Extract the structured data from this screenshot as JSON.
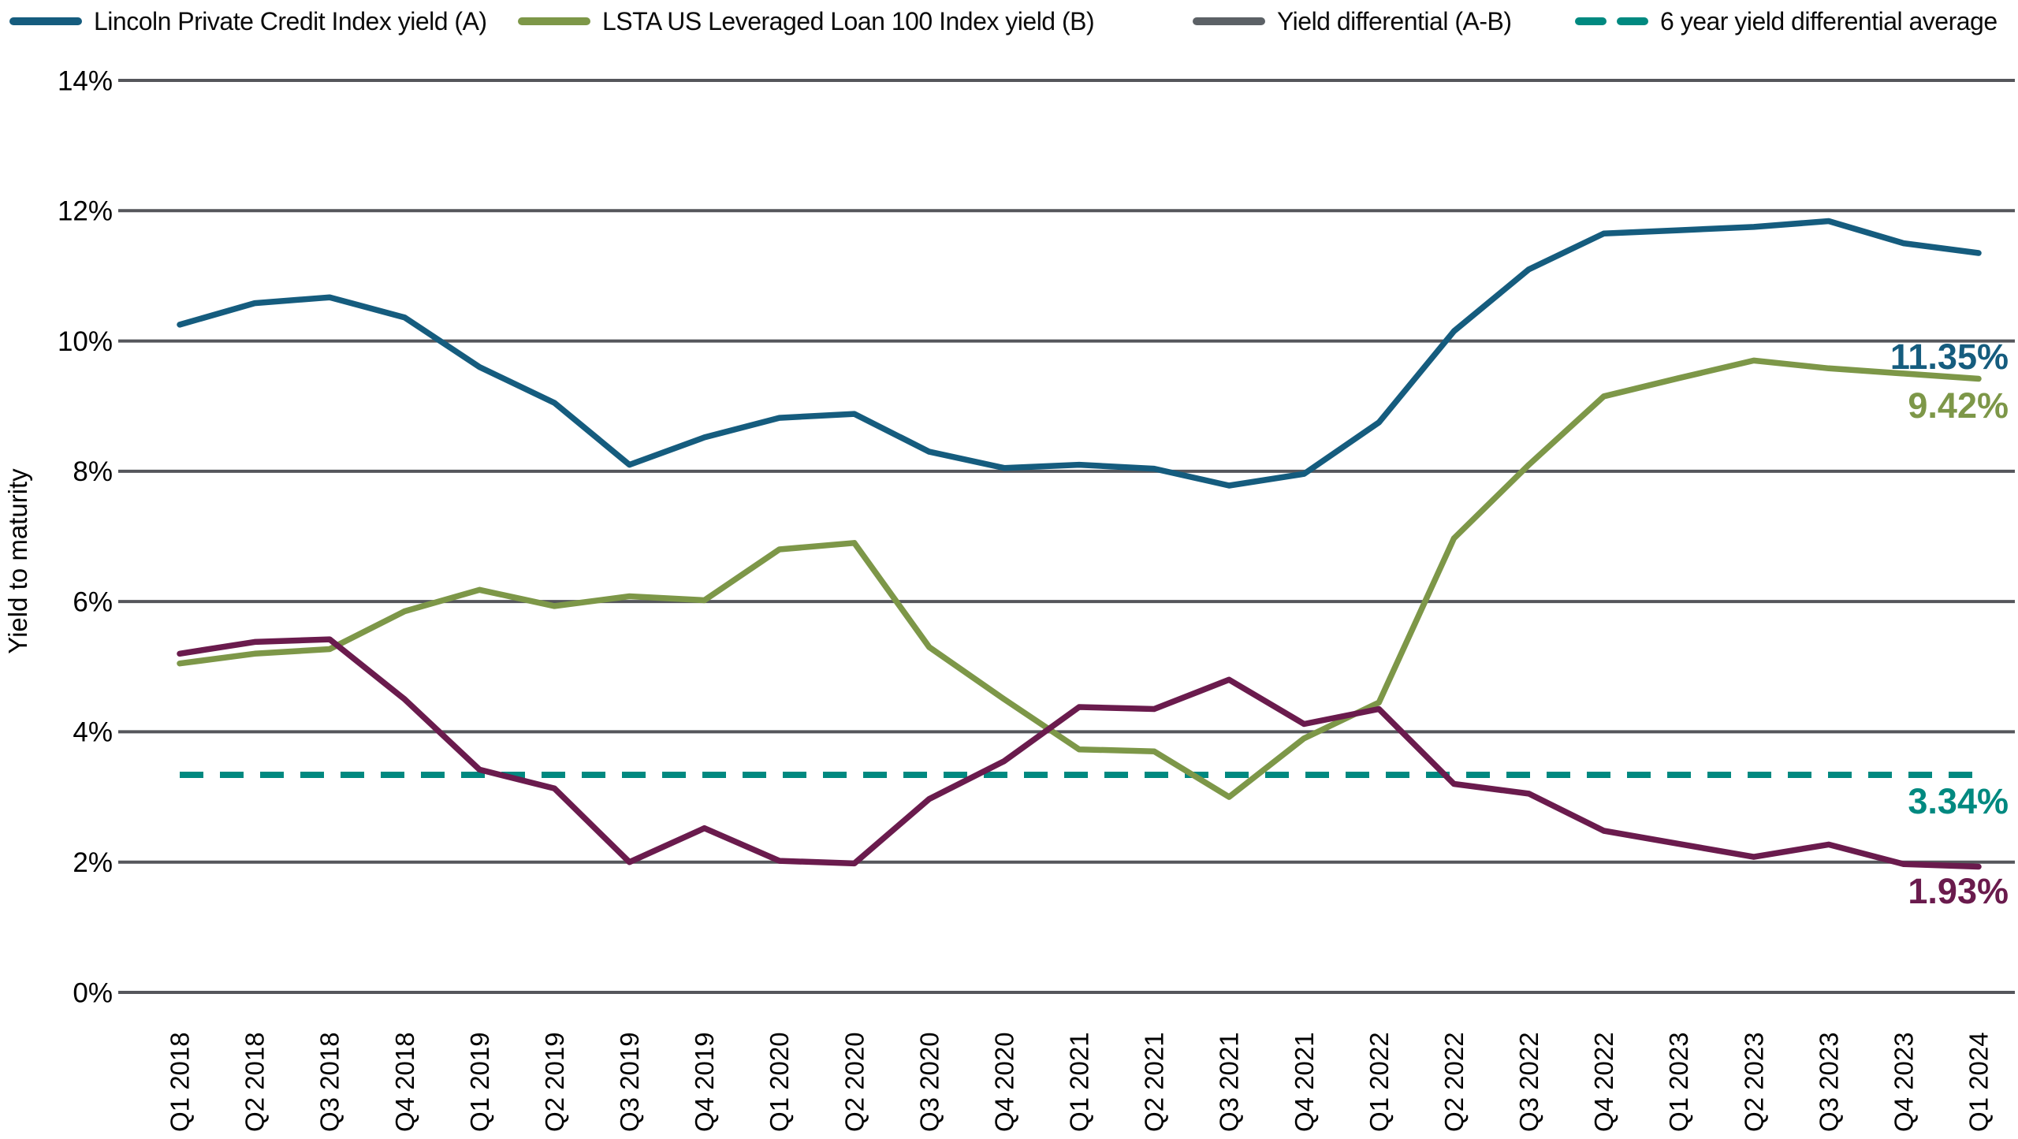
{
  "legend": {
    "items": [
      {
        "label": "Lincoln Private Credit Index yield (A)",
        "color": "#155C7E",
        "style": "solid"
      },
      {
        "label": "LSTA US Leveraged Loan 100 Index yield (B)",
        "color": "#7D9748",
        "style": "solid"
      },
      {
        "label": "Yield differential (A-B)",
        "color": "#5C6166",
        "style": "solid"
      },
      {
        "label": "6 year yield differential average",
        "color": "#008980",
        "style": "dashed"
      }
    ]
  },
  "y_axis": {
    "title": "Yield to maturity",
    "tick_format": "percent"
  },
  "chart_data": {
    "type": "line",
    "title": "",
    "xlabel": "",
    "ylabel": "Yield to maturity",
    "ylim": [
      0,
      14
    ],
    "ytick_step": 2,
    "ytick_labels": [
      "0%",
      "2%",
      "4%",
      "6%",
      "8%",
      "10%",
      "12%",
      "14%"
    ],
    "grid": true,
    "legend_position": "top",
    "x_labels": [
      "Q1 2018",
      "Q2 2018",
      "Q3 2018",
      "Q4 2018",
      "Q1 2019",
      "Q2 2019",
      "Q3 2019",
      "Q4 2019",
      "Q1 2020",
      "Q2 2020",
      "Q3 2020",
      "Q4 2020",
      "Q1 2021",
      "Q2 2021",
      "Q3 2021",
      "Q4 2021",
      "Q1 2022",
      "Q2 2022",
      "Q3 2022",
      "Q4 2022",
      "Q1 2023",
      "Q2 2023",
      "Q3 2023",
      "Q4 2023",
      "Q1 2024"
    ],
    "series": [
      {
        "name": "Lincoln Private Credit Index yield (A)",
        "color": "#155C7E",
        "values": [
          10.25,
          10.58,
          10.67,
          10.36,
          9.6,
          9.05,
          8.1,
          8.52,
          8.82,
          8.88,
          8.3,
          8.05,
          8.1,
          8.04,
          7.78,
          7.96,
          8.75,
          10.15,
          11.1,
          11.65,
          11.7,
          11.75,
          11.84,
          11.5,
          11.35
        ]
      },
      {
        "name": "LSTA US Leveraged Loan 100 Index yield (B)",
        "color": "#7D9748",
        "values": [
          5.05,
          5.2,
          5.27,
          5.85,
          6.18,
          5.93,
          6.08,
          6.02,
          6.8,
          6.9,
          5.3,
          4.5,
          3.73,
          3.7,
          3.0,
          3.9,
          4.45,
          6.97,
          8.1,
          9.15,
          9.43,
          9.7,
          9.58,
          9.5,
          9.42
        ]
      },
      {
        "name": "Yield differential (A-B)",
        "color": "#6A1B4D",
        "values": [
          5.2,
          5.38,
          5.42,
          4.5,
          3.42,
          3.13,
          2.0,
          2.52,
          2.02,
          1.98,
          2.97,
          3.55,
          4.38,
          4.35,
          4.8,
          4.12,
          4.35,
          3.2,
          3.05,
          2.48,
          2.28,
          2.08,
          2.27,
          1.97,
          1.93
        ]
      }
    ],
    "reference_line": {
      "name": "6 year yield differential average",
      "color": "#008980",
      "style": "dashed",
      "value": 3.34
    },
    "end_labels": [
      {
        "text": "11.35%",
        "color": "#155C7E"
      },
      {
        "text": "9.42%",
        "color": "#7D9748"
      },
      {
        "text": "3.34%",
        "color": "#008980"
      },
      {
        "text": "1.93%",
        "color": "#6A1B4D"
      }
    ],
    "gridline_color": "#55565B"
  }
}
